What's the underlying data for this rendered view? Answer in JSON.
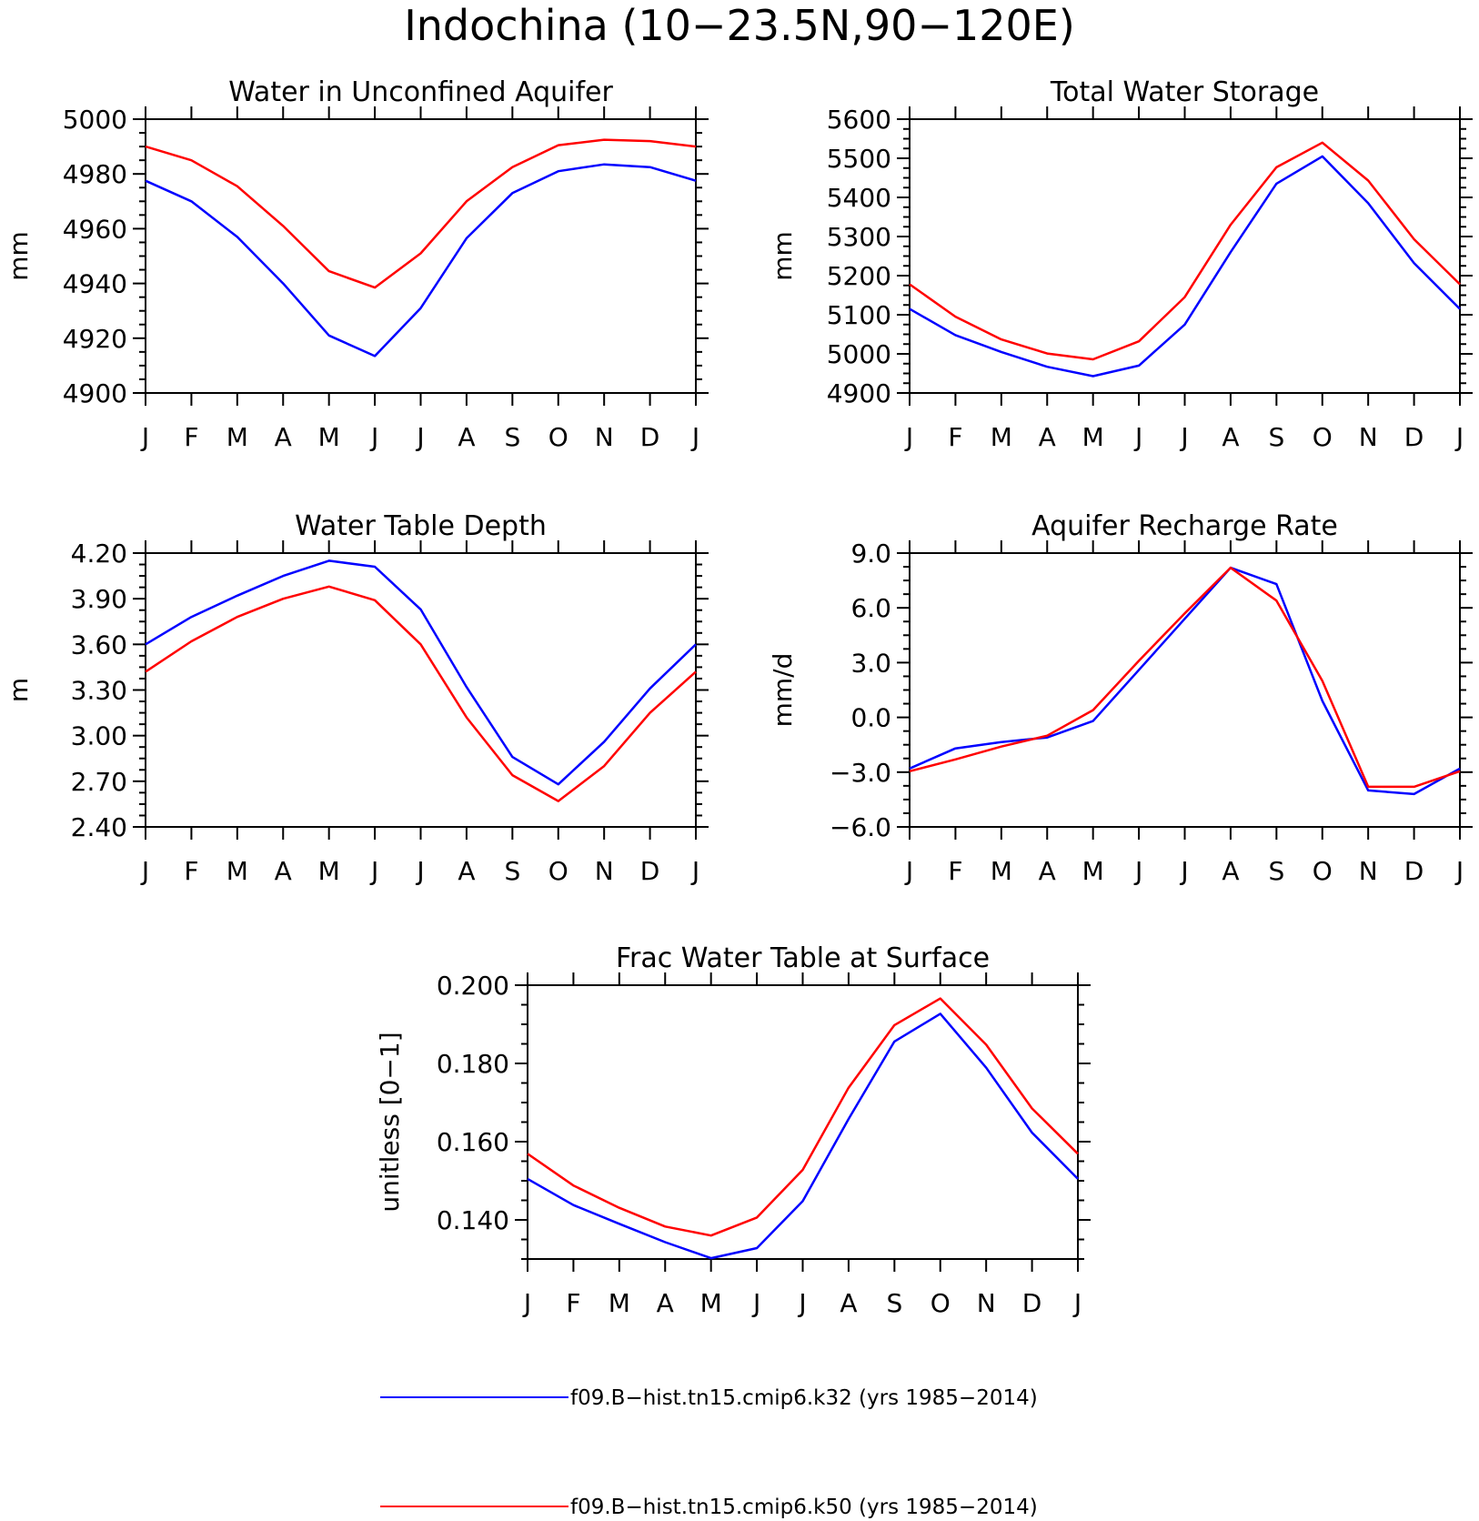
{
  "figure": {
    "title": "Indochina (10−23.5N,90−120E)"
  },
  "colors": {
    "series_1": "#0000ff",
    "series_2": "#ff0000",
    "axis": "#000000"
  },
  "legend": {
    "placement": "bottom-center",
    "entries": [
      {
        "label": "f09.B−hist.tn15.cmip6.k32 (yrs 1985−2014)",
        "color": "#0000ff"
      },
      {
        "label": "f09.B−hist.tn15.cmip6.k50 (yrs 1985−2014)",
        "color": "#ff0000"
      }
    ]
  },
  "chart_data": [
    {
      "type": "line",
      "title": "Water in Unconfined Aquifer",
      "ylabel": "mm",
      "categories": [
        "J",
        "F",
        "M",
        "A",
        "M",
        "J",
        "J",
        "A",
        "S",
        "O",
        "N",
        "D",
        "J"
      ],
      "ylim": [
        4900,
        5000
      ],
      "yticks": [
        "4900",
        "4920",
        "4940",
        "4960",
        "4980",
        "5000"
      ],
      "series": [
        {
          "values": [
            4977.5,
            4970,
            4957,
            4940,
            4921,
            4913.5,
            4931,
            4956.5,
            4973,
            4981,
            4983.5,
            4982.5,
            4977.5
          ]
        },
        {
          "values": [
            4990,
            4985,
            4975.5,
            4961,
            4944.5,
            4938.5,
            4951,
            4970,
            4982.5,
            4990.5,
            4992.5,
            4992,
            4990
          ]
        }
      ]
    },
    {
      "type": "line",
      "title": "Total Water Storage",
      "ylabel": "mm",
      "categories": [
        "J",
        "F",
        "M",
        "A",
        "M",
        "J",
        "J",
        "A",
        "S",
        "O",
        "N",
        "D",
        "J"
      ],
      "ylim": [
        4900,
        5600
      ],
      "yticks": [
        "4900",
        "5000",
        "5100",
        "5200",
        "5300",
        "5400",
        "5500",
        "5600"
      ],
      "series": [
        {
          "values": [
            5115,
            5048,
            5005,
            4967,
            4943,
            4970,
            5075,
            5260,
            5435,
            5505,
            5385,
            5232,
            5115
          ]
        },
        {
          "values": [
            5178,
            5095,
            5037,
            5001,
            4986,
            5032,
            5145,
            5330,
            5477,
            5540,
            5443,
            5293,
            5178
          ]
        }
      ]
    },
    {
      "type": "line",
      "title": "Water Table Depth",
      "ylabel": "m",
      "categories": [
        "J",
        "F",
        "M",
        "A",
        "M",
        "J",
        "J",
        "A",
        "S",
        "O",
        "N",
        "D",
        "J"
      ],
      "ylim": [
        2.4,
        4.2
      ],
      "yticks": [
        "2.40",
        "2.70",
        "3.00",
        "3.30",
        "3.60",
        "3.90",
        "4.20"
      ],
      "series": [
        {
          "values": [
            3.6,
            3.78,
            3.92,
            4.05,
            4.15,
            4.11,
            3.83,
            3.32,
            2.86,
            2.68,
            2.96,
            3.31,
            3.6
          ]
        },
        {
          "values": [
            3.42,
            3.62,
            3.78,
            3.9,
            3.98,
            3.89,
            3.6,
            3.12,
            2.74,
            2.57,
            2.8,
            3.15,
            3.42
          ]
        }
      ]
    },
    {
      "type": "line",
      "title": "Aquifer Recharge Rate",
      "ylabel": "mm/d",
      "categories": [
        "J",
        "F",
        "M",
        "A",
        "M",
        "J",
        "J",
        "A",
        "S",
        "O",
        "N",
        "D",
        "J"
      ],
      "ylim": [
        -6.0,
        9.0
      ],
      "yticks": [
        "−6.0",
        "−3.0",
        "0.0",
        "3.0",
        "6.0",
        "9.0"
      ],
      "series": [
        {
          "values": [
            -2.8,
            -1.7,
            -1.35,
            -1.1,
            -0.2,
            2.6,
            5.4,
            8.2,
            7.3,
            0.9,
            -4.0,
            -4.2,
            -2.8
          ]
        },
        {
          "values": [
            -2.95,
            -2.3,
            -1.6,
            -1.0,
            0.4,
            3.1,
            5.7,
            8.2,
            6.4,
            2.0,
            -3.8,
            -3.8,
            -2.95
          ]
        }
      ]
    },
    {
      "type": "line",
      "title": "Frac Water Table at Surface",
      "ylabel": "unitless [0−1]",
      "categories": [
        "J",
        "F",
        "M",
        "A",
        "M",
        "J",
        "J",
        "A",
        "S",
        "O",
        "N",
        "D",
        "J"
      ],
      "ylim": [
        0.13,
        0.2
      ],
      "yticks": [
        "0.140",
        "0.160",
        "0.180",
        "0.200"
      ],
      "series": [
        {
          "values": [
            0.1505,
            0.1438,
            0.139,
            0.1343,
            0.1302,
            0.1328,
            0.1448,
            0.1658,
            0.1856,
            0.1927,
            0.1789,
            0.1623,
            0.1505
          ]
        },
        {
          "values": [
            0.1569,
            0.1488,
            0.1431,
            0.1383,
            0.136,
            0.1406,
            0.1528,
            0.1738,
            0.1898,
            0.1966,
            0.1848,
            0.1685,
            0.1569
          ]
        }
      ]
    }
  ]
}
